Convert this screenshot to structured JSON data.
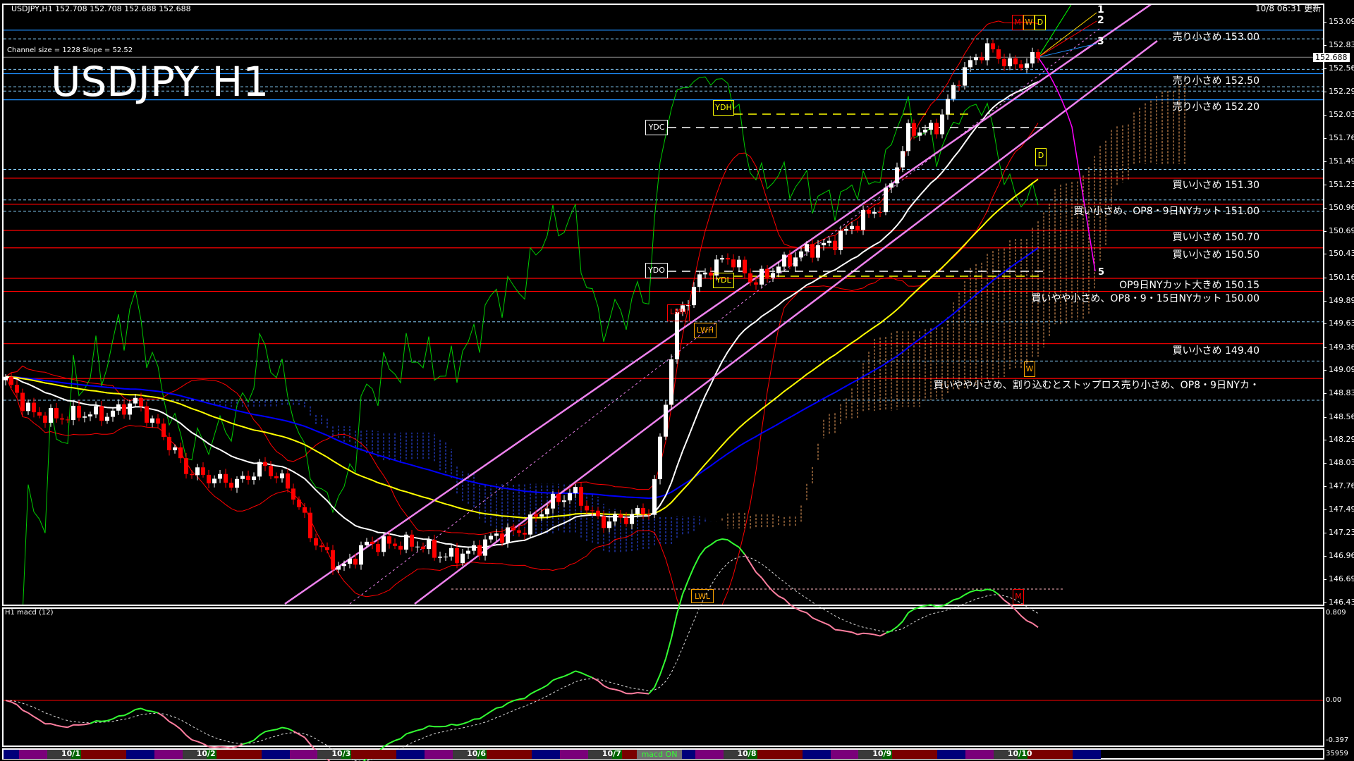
{
  "header": {
    "symbol_ohlc": "USDJPY,H1  152.708 152.708 152.688 152.688",
    "updated": "10/8 06:31 更新",
    "channel_info": "Channel size = 1228 Slope = 52.52",
    "big_title": "USDJPY H1"
  },
  "levels": [
    {
      "price": 153.0,
      "label": "売り小さめ 153.00",
      "color": "#1e90ff"
    },
    {
      "price": 152.5,
      "label": "売り小さめ 152.50",
      "color": "#1e90ff"
    },
    {
      "price": 152.2,
      "label": "売り小さめ 152.20",
      "color": "#1e90ff"
    },
    {
      "price": 151.3,
      "label": "買い小さめ 151.30",
      "color": "#ff0000"
    },
    {
      "price": 151.0,
      "label": "買い小さめ、OP8・9日NYカット 151.00",
      "color": "#ff0000"
    },
    {
      "price": 150.7,
      "label": "買い小さめ 150.70",
      "color": "#ff0000"
    },
    {
      "price": 150.5,
      "label": "買い小さめ 150.50",
      "color": "#ff0000"
    },
    {
      "price": 150.15,
      "label": "OP9日NYカット大きめ 150.15",
      "color": "#ff0000"
    },
    {
      "price": 150.0,
      "label": "買いやや小さめ、OP8・9・15日NYカット 150.00",
      "color": "#ff0000"
    },
    {
      "price": 149.4,
      "label": "買い小さめ 149.40",
      "color": "#ff0000"
    },
    {
      "price": 149.0,
      "label": "買いやや小さめ、割り込むとストップロス売り小さめ、OP8・9日NYカ・",
      "color": "#ff0000"
    }
  ],
  "annotations": {
    "ydh": "YDH",
    "ydc": "YDC",
    "ydo": "YDO",
    "ydl": "YDL",
    "lwh": "LWH",
    "lwl": "LWL",
    "lmh": "LMH",
    "m": "M",
    "w": "W",
    "d": "D",
    "d2": "D",
    "w2": "W",
    "m2": "M",
    "fan1": "1",
    "fan2": "2",
    "fan3": "3",
    "fan5": "5"
  },
  "price_axis": {
    "current": "152.688",
    "ticks": [
      "153.095",
      "152.830",
      "152.560",
      "152.295",
      "152.030",
      "151.760",
      "151.495",
      "151.230",
      "150.960",
      "150.695",
      "150.430",
      "150.160",
      "149.895",
      "149.630",
      "149.360",
      "149.095",
      "148.830",
      "148.560",
      "148.295",
      "148.030",
      "147.760",
      "147.495",
      "147.230",
      "146.960",
      "146.695",
      "146.430"
    ]
  },
  "macd_panel": {
    "title": "H1  macd (12)",
    "axis_top": "0.809",
    "axis_zero": "0.00",
    "axis_bottom": "-0.397",
    "volume_readout": "35959"
  },
  "timebar": {
    "days": [
      "10/1",
      "10/2",
      "10/3",
      "10/6",
      "10/7",
      "10/8",
      "10/9",
      "10/10"
    ],
    "status": "macd ON",
    "colors": {
      "asia": "#00007a",
      "europe": "#7a007a",
      "gap": "#3a3a3a",
      "open": "#006400",
      "ny": "#7a0000"
    }
  },
  "chart_data": {
    "type": "candlestick",
    "symbol": "USDJPY",
    "timeframe": "H1",
    "ylim": [
      146.43,
      153.095
    ],
    "close_path": [
      148.98,
      148.6,
      148.55,
      148.6,
      148.58,
      148.74,
      148.4,
      147.95,
      147.85,
      147.8,
      148.0,
      147.75,
      147.11,
      146.8,
      147.1,
      147.1,
      147.1,
      146.95,
      147.0,
      147.2,
      147.25,
      147.55,
      147.7,
      147.35,
      147.4,
      147.5,
      149.7,
      150.2,
      150.4,
      150.1,
      150.3,
      150.47,
      150.55,
      150.8,
      151.0,
      151.85,
      151.85,
      152.5,
      152.8,
      152.58,
      152.69
    ],
    "last_price": 152.688,
    "macd_ylim": [
      -0.397,
      0.809
    ],
    "colors": {
      "up": "#ffffff",
      "down": "#ff0000",
      "ema_fast": "#ffffff",
      "ema_mid": "#ffff00",
      "ema_slow": "#0000ff",
      "bands": "#ff0000",
      "rsi": "#00cc00",
      "channel": "#ee82ee",
      "cloud_bull": "#f4a460",
      "cloud_bear": "#3050ff",
      "macd_up": "#33ff33",
      "macd_down": "#ff7fa0"
    }
  }
}
